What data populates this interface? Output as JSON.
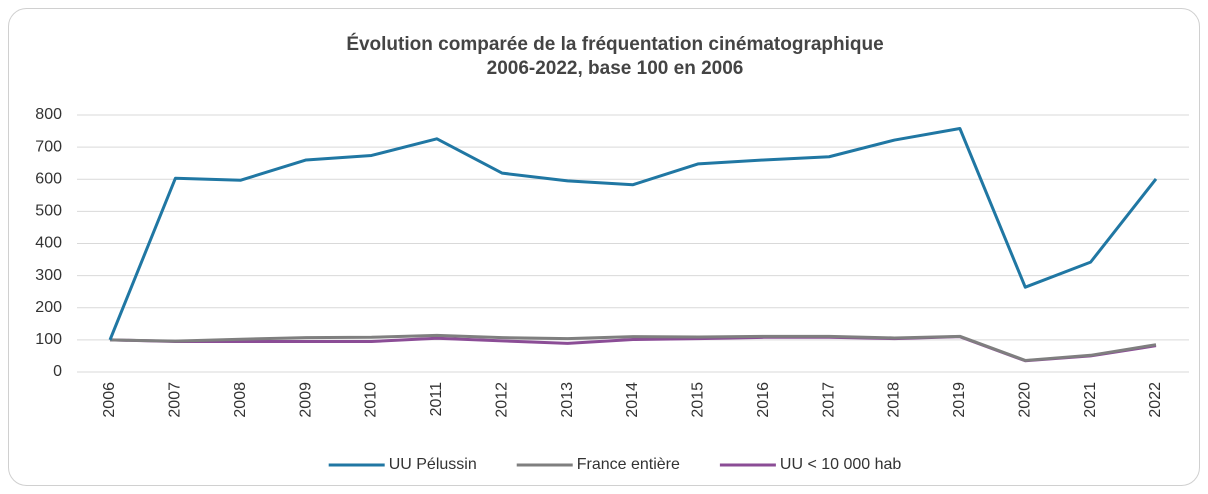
{
  "chart_data": {
    "type": "line",
    "title": [
      "Évolution comparée de la fréquentation cinématographique",
      "2006-2022, base 100 en 2006"
    ],
    "categories": [
      "2006",
      "2007",
      "2008",
      "2009",
      "2010",
      "2011",
      "2012",
      "2013",
      "2014",
      "2015",
      "2016",
      "2017",
      "2018",
      "2019",
      "2020",
      "2021",
      "2022"
    ],
    "series": [
      {
        "name": "UU Pélussin",
        "color": "#2077a3",
        "values": [
          100,
          603,
          597,
          660,
          674,
          726,
          619,
          595,
          583,
          648,
          660,
          670,
          722,
          758,
          264,
          342,
          601
        ]
      },
      {
        "name": "France entière",
        "color": "#7f7f7f",
        "values": [
          100,
          96,
          102,
          107,
          108,
          114,
          107,
          104,
          110,
          109,
          111,
          111,
          106,
          111,
          36,
          52,
          85
        ]
      },
      {
        "name": "UU < 10 000 hab",
        "color": "#8b4d96",
        "values": [
          100,
          95,
          95,
          95,
          95,
          105,
          97,
          89,
          101,
          104,
          108,
          108,
          104,
          110,
          35,
          50,
          82
        ]
      }
    ],
    "ylim": [
      0,
      800
    ],
    "yticks": [
      0,
      100,
      200,
      300,
      400,
      500,
      600,
      700,
      800
    ],
    "grid": true,
    "legend": "bottom"
  }
}
